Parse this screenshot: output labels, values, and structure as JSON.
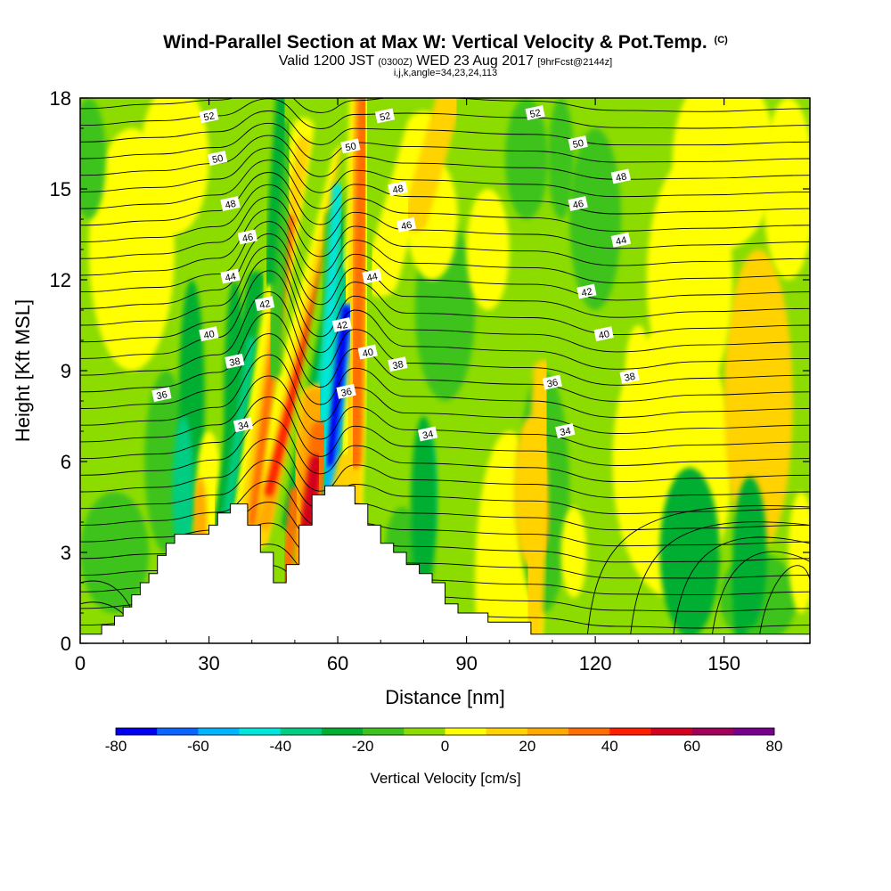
{
  "title": {
    "main": "Wind-Parallel Section at Max W: Vertical Velocity & Pot.Temp.",
    "unit_tag": "(C)",
    "valid_prefix": "Valid 1200 JST",
    "valid_utc": "(0300Z)",
    "valid_date": "WED 23 Aug 2017",
    "forecast": "[9hrFcst@2144z]",
    "indices": "i,j,k,angle=34,23,24,113"
  },
  "chart_data": {
    "type": "heatmap",
    "title": "Wind-Parallel Section at Max W: Vertical Velocity & Pot.Temp.",
    "xlabel": "Distance [nm]",
    "ylabel": "Height [Kft MSL]",
    "xlim": [
      0,
      170
    ],
    "ylim": [
      0,
      18
    ],
    "xticks": [
      0,
      30,
      60,
      90,
      120,
      150
    ],
    "yticks": [
      0,
      3,
      6,
      9,
      12,
      15,
      18
    ],
    "colorbar": {
      "title": "Vertical Velocity [cm/s]",
      "levels": [
        -80,
        -70,
        -60,
        -50,
        -40,
        -30,
        -20,
        -10,
        0,
        10,
        20,
        30,
        40,
        50,
        60,
        70,
        80
      ],
      "tick_labels": [
        -80,
        -60,
        -40,
        -20,
        0,
        20,
        40,
        60,
        80
      ],
      "colors": [
        "#0000f0",
        "#0a64ff",
        "#00b4ff",
        "#00e6dc",
        "#00cd82",
        "#00af32",
        "#3cc31e",
        "#8cdc00",
        "#ffff00",
        "#ffd200",
        "#ffaa00",
        "#ff6e00",
        "#ff1e00",
        "#d2001e",
        "#a0005a",
        "#78008c"
      ]
    },
    "terrain": [
      [
        0,
        0.3
      ],
      [
        5,
        0.3
      ],
      [
        5,
        0.6
      ],
      [
        8,
        0.6
      ],
      [
        8,
        0.9
      ],
      [
        10,
        0.9
      ],
      [
        10,
        1.2
      ],
      [
        12,
        1.2
      ],
      [
        12,
        1.6
      ],
      [
        14,
        1.6
      ],
      [
        14,
        2
      ],
      [
        16,
        2
      ],
      [
        16,
        2.3
      ],
      [
        18,
        2.3
      ],
      [
        18,
        2.9
      ],
      [
        20,
        2.9
      ],
      [
        20,
        3.3
      ],
      [
        22,
        3.3
      ],
      [
        22,
        3.6
      ],
      [
        30,
        3.6
      ],
      [
        30,
        3.9
      ],
      [
        32,
        3.9
      ],
      [
        32,
        4.3
      ],
      [
        35,
        4.3
      ],
      [
        35,
        4.6
      ],
      [
        39,
        4.6
      ],
      [
        39,
        3.9
      ],
      [
        42,
        3.9
      ],
      [
        42,
        3.0
      ],
      [
        45,
        3.0
      ],
      [
        45,
        2.0
      ],
      [
        48,
        2.0
      ],
      [
        48,
        2.6
      ],
      [
        51,
        2.6
      ],
      [
        51,
        3.9
      ],
      [
        54,
        3.9
      ],
      [
        54,
        4.9
      ],
      [
        57,
        4.9
      ],
      [
        57,
        5.2
      ],
      [
        64,
        5.2
      ],
      [
        64,
        4.6
      ],
      [
        67,
        4.6
      ],
      [
        67,
        3.9
      ],
      [
        70,
        3.9
      ],
      [
        70,
        3.3
      ],
      [
        73,
        3.3
      ],
      [
        73,
        3.0
      ],
      [
        76,
        3.0
      ],
      [
        76,
        2.6
      ],
      [
        79,
        2.6
      ],
      [
        79,
        2.3
      ],
      [
        82,
        2.3
      ],
      [
        82,
        2.0
      ],
      [
        85,
        2.0
      ],
      [
        85,
        1.3
      ],
      [
        88,
        1.3
      ],
      [
        88,
        1.0
      ],
      [
        95,
        1.0
      ],
      [
        95,
        0.7
      ],
      [
        105,
        0.7
      ],
      [
        105,
        0.3
      ],
      [
        170,
        0.3
      ]
    ],
    "contour_labels": [
      {
        "x": 30,
        "y": 17.4,
        "text": "52"
      },
      {
        "x": 71,
        "y": 17.4,
        "text": "52"
      },
      {
        "x": 106,
        "y": 17.5,
        "text": "52"
      },
      {
        "x": 32,
        "y": 16.0,
        "text": "50"
      },
      {
        "x": 63,
        "y": 16.4,
        "text": "50"
      },
      {
        "x": 116,
        "y": 16.5,
        "text": "50"
      },
      {
        "x": 35,
        "y": 14.5,
        "text": "48"
      },
      {
        "x": 74,
        "y": 15.0,
        "text": "48"
      },
      {
        "x": 126,
        "y": 15.4,
        "text": "48"
      },
      {
        "x": 39,
        "y": 13.4,
        "text": "46"
      },
      {
        "x": 76,
        "y": 13.8,
        "text": "46"
      },
      {
        "x": 116,
        "y": 14.5,
        "text": "46"
      },
      {
        "x": 35,
        "y": 12.1,
        "text": "44"
      },
      {
        "x": 68,
        "y": 12.1,
        "text": "44"
      },
      {
        "x": 126,
        "y": 13.3,
        "text": "44"
      },
      {
        "x": 43,
        "y": 11.2,
        "text": "42"
      },
      {
        "x": 61,
        "y": 10.5,
        "text": "42"
      },
      {
        "x": 118,
        "y": 11.6,
        "text": "42"
      },
      {
        "x": 30,
        "y": 10.2,
        "text": "40"
      },
      {
        "x": 67,
        "y": 9.6,
        "text": "40"
      },
      {
        "x": 122,
        "y": 10.2,
        "text": "40"
      },
      {
        "x": 36,
        "y": 9.3,
        "text": "38"
      },
      {
        "x": 74,
        "y": 9.2,
        "text": "38"
      },
      {
        "x": 128,
        "y": 8.8,
        "text": "38"
      },
      {
        "x": 19,
        "y": 8.2,
        "text": "36"
      },
      {
        "x": 62,
        "y": 8.3,
        "text": "36"
      },
      {
        "x": 110,
        "y": 8.6,
        "text": "36"
      },
      {
        "x": 38,
        "y": 7.2,
        "text": "34"
      },
      {
        "x": 81,
        "y": 6.9,
        "text": "34"
      },
      {
        "x": 113,
        "y": 7.0,
        "text": "34"
      }
    ]
  }
}
